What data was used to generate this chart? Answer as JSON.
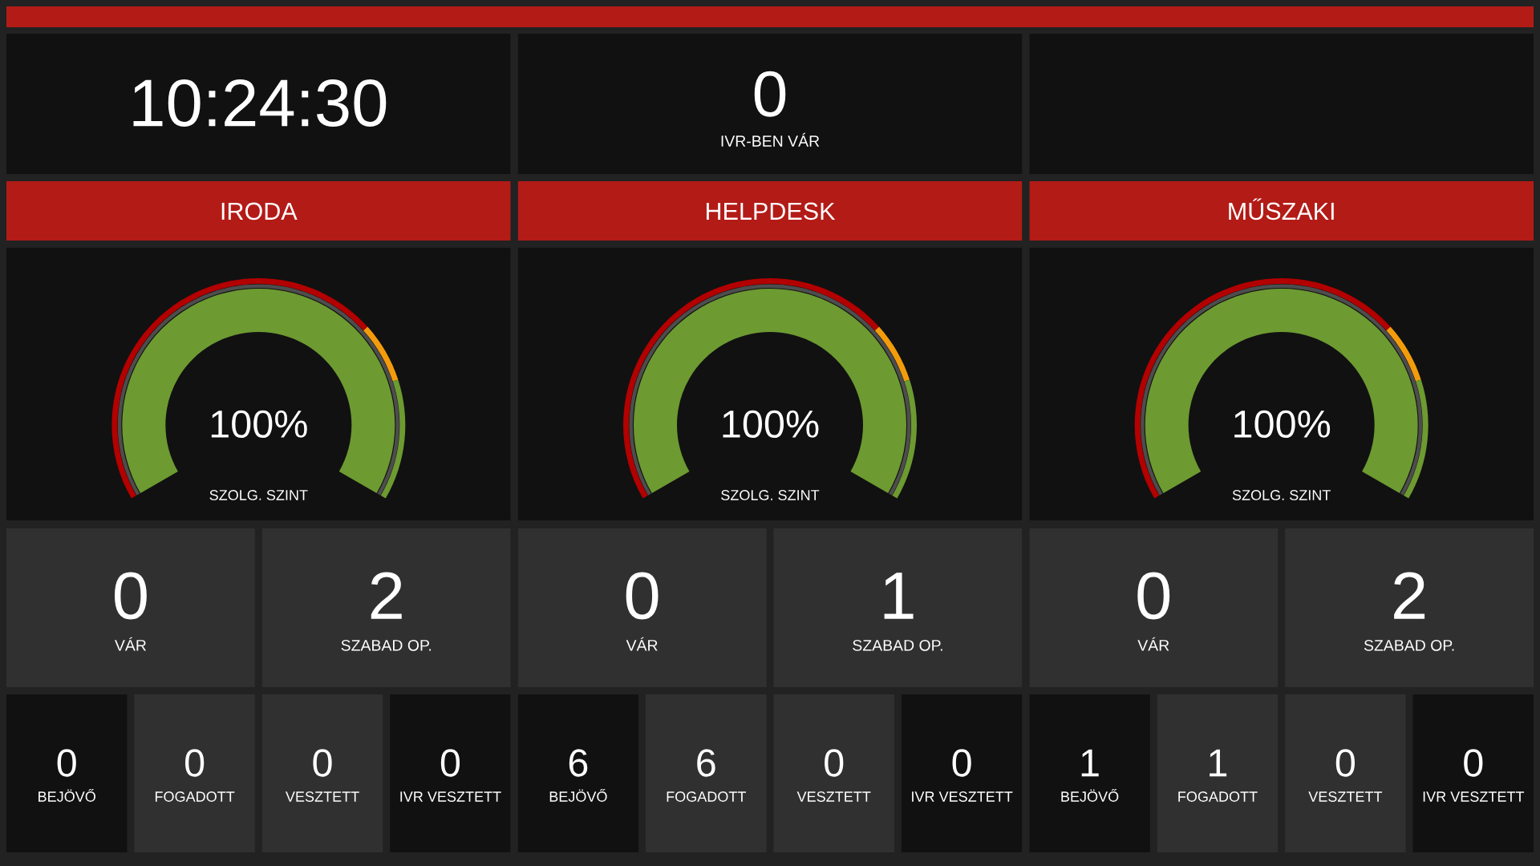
{
  "chart_data": [
    {
      "type": "other",
      "annotations": [
        "10:24:30"
      ]
    },
    {
      "type": "other",
      "annotations": [
        "0",
        "IVR-BEN VÁR"
      ]
    },
    {
      "type": "pie",
      "title": "IRODA",
      "series": [
        {
          "values": [
            100
          ],
          "colors": [
            "#6d9a31"
          ],
          "value_labels": [
            "100%"
          ]
        },
        {
          "values": [
            70,
            10,
            20
          ],
          "colors": [
            "#b30000",
            "#f39c0b",
            "#6d9a31"
          ]
        }
      ],
      "annotations": [
        "SZOLG. SZINT"
      ]
    },
    {
      "type": "pie",
      "title": "HELPDESK",
      "series": [
        {
          "values": [
            100
          ],
          "colors": [
            "#6d9a31"
          ],
          "value_labels": [
            "100%"
          ]
        },
        {
          "values": [
            70,
            10,
            20
          ],
          "colors": [
            "#b30000",
            "#f39c0b",
            "#6d9a31"
          ]
        }
      ],
      "annotations": [
        "SZOLG. SZINT"
      ]
    },
    {
      "type": "pie",
      "title": "MŰSZAKI",
      "series": [
        {
          "values": [
            100
          ],
          "colors": [
            "#6d9a31"
          ],
          "value_labels": [
            "100%"
          ]
        },
        {
          "values": [
            70,
            10,
            20
          ],
          "colors": [
            "#b30000",
            "#f39c0b",
            "#6d9a31"
          ]
        }
      ],
      "annotations": [
        "SZOLG. SZINT"
      ]
    },
    {
      "type": "other",
      "annotations": [
        "0",
        "VÁR",
        "2",
        "SZABAD OP.",
        "0",
        "BEJÖVŐ",
        "0",
        "FOGADOTT",
        "0",
        "VESZTETT",
        "0",
        "IVR VESZTETT"
      ]
    },
    {
      "type": "other",
      "annotations": [
        "0",
        "VÁR",
        "1",
        "SZABAD OP.",
        "6",
        "BEJÖVŐ",
        "6",
        "FOGADOTT",
        "0",
        "VESZTETT",
        "0",
        "IVR VESZTETT"
      ]
    },
    {
      "type": "other",
      "annotations": [
        "0",
        "VÁR",
        "2",
        "SZABAD OP.",
        "1",
        "BEJÖVŐ",
        "1",
        "FOGADOTT",
        "0",
        "VESZTETT",
        "0",
        "IVR VESZTETT"
      ]
    }
  ]
}
